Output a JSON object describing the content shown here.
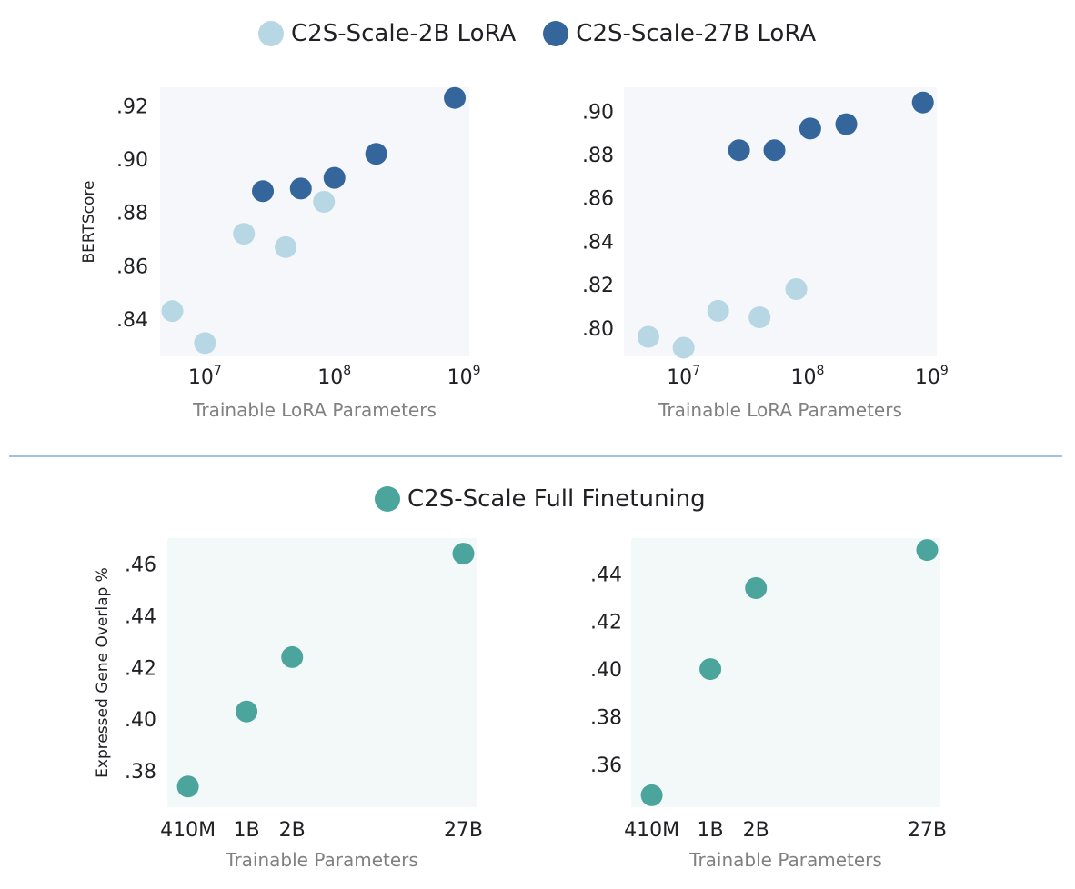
{
  "legends": {
    "top": [
      {
        "label": "C2S-Scale-2B LoRA",
        "color": "#b7d7e4"
      },
      {
        "label": "C2S-Scale-27B LoRA",
        "color": "#34669c"
      }
    ],
    "bottom": [
      {
        "label": "C2S-Scale Full Finetuning",
        "color": "#4ba59d"
      }
    ]
  },
  "divider_color": "#9fc2e5",
  "chart_data": [
    {
      "type": "scatter",
      "panel": "top-left",
      "title": "",
      "xlabel": "Trainable LoRA Parameters",
      "ylabel": "BERTScore",
      "xscale": "log",
      "xlim": [
        4500000.0,
        1100000000.0
      ],
      "ylim": [
        0.826,
        0.927
      ],
      "xticks": [
        {
          "value": 10000000.0,
          "label": "10",
          "exp": "7"
        },
        {
          "value": 100000000.0,
          "label": "10",
          "exp": "8"
        },
        {
          "value": 1000000000.0,
          "label": "10",
          "exp": "9"
        }
      ],
      "yticks": [
        {
          "value": 0.84,
          "label": ".84"
        },
        {
          "value": 0.86,
          "label": ".86"
        },
        {
          "value": 0.88,
          "label": ".88"
        },
        {
          "value": 0.9,
          "label": ".90"
        },
        {
          "value": 0.92,
          "label": ".92"
        }
      ],
      "background": "#f5f7fa",
      "grid": false,
      "series": [
        {
          "name": "C2S-Scale-2B LoRA",
          "color": "#b7d7e4",
          "points": [
            [
              5600000.0,
              0.843
            ],
            [
              10000000.0,
              0.831
            ],
            [
              20000000.0,
              0.872
            ],
            [
              42000000.0,
              0.867
            ],
            [
              83000000.0,
              0.884
            ]
          ]
        },
        {
          "name": "C2S-Scale-27B LoRA",
          "color": "#34669c",
          "points": [
            [
              28000000.0,
              0.888
            ],
            [
              55000000.0,
              0.889
            ],
            [
              100000000.0,
              0.893
            ],
            [
              210000000.0,
              0.902
            ],
            [
              850000000.0,
              0.923
            ]
          ]
        }
      ]
    },
    {
      "type": "scatter",
      "panel": "top-right",
      "title": "",
      "xlabel": "Trainable LoRA Parameters",
      "ylabel": "",
      "xscale": "log",
      "xlim": [
        3300000.0,
        1100000000.0
      ],
      "ylim": [
        0.787,
        0.911
      ],
      "xticks": [
        {
          "value": 10000000.0,
          "label": "10",
          "exp": "7"
        },
        {
          "value": 100000000.0,
          "label": "10",
          "exp": "8"
        },
        {
          "value": 1000000000.0,
          "label": "10",
          "exp": "9"
        }
      ],
      "yticks": [
        {
          "value": 0.8,
          "label": ".80"
        },
        {
          "value": 0.82,
          "label": ".82"
        },
        {
          "value": 0.84,
          "label": ".84"
        },
        {
          "value": 0.86,
          "label": ".86"
        },
        {
          "value": 0.88,
          "label": ".88"
        },
        {
          "value": 0.9,
          "label": ".90"
        }
      ],
      "background": "#f5f7fa",
      "grid": false,
      "series": [
        {
          "name": "C2S-Scale-2B LoRA",
          "color": "#b7d7e4",
          "points": [
            [
              5200000.0,
              0.796
            ],
            [
              10000000.0,
              0.791
            ],
            [
              19000000.0,
              0.808
            ],
            [
              41000000.0,
              0.805
            ],
            [
              81000000.0,
              0.818
            ]
          ]
        },
        {
          "name": "C2S-Scale-27B LoRA",
          "color": "#34669c",
          "points": [
            [
              28000000.0,
              0.882
            ],
            [
              54000000.0,
              0.882
            ],
            [
              105000000.0,
              0.892
            ],
            [
              205000000.0,
              0.894
            ],
            [
              850000000.0,
              0.904
            ]
          ]
        }
      ]
    },
    {
      "type": "scatter",
      "panel": "bottom-left",
      "title": "",
      "xlabel": "Trainable Parameters",
      "ylabel": "Expressed Gene Overlap %",
      "xscale": "log",
      "xlim": [
        300000000.0,
        33000000000.0
      ],
      "ylim": [
        0.366,
        0.47
      ],
      "xticks": [
        {
          "value": 410000000.0,
          "label": "410M"
        },
        {
          "value": 1000000000.0,
          "label": "1B"
        },
        {
          "value": 2000000000.0,
          "label": "2B"
        },
        {
          "value": 27000000000.0,
          "label": "27B"
        }
      ],
      "yticks": [
        {
          "value": 0.38,
          "label": ".38"
        },
        {
          "value": 0.4,
          "label": ".40"
        },
        {
          "value": 0.42,
          "label": ".42"
        },
        {
          "value": 0.44,
          "label": ".44"
        },
        {
          "value": 0.46,
          "label": ".46"
        }
      ],
      "background": "#f3f8f8",
      "grid": false,
      "series": [
        {
          "name": "C2S-Scale Full Finetuning",
          "color": "#4ba59d",
          "points": [
            [
              410000000.0,
              0.374
            ],
            [
              1000000000.0,
              0.403
            ],
            [
              2000000000.0,
              0.424
            ],
            [
              27000000000.0,
              0.464
            ]
          ]
        }
      ]
    },
    {
      "type": "scatter",
      "panel": "bottom-right",
      "title": "",
      "xlabel": "Trainable Parameters",
      "ylabel": "",
      "xscale": "log",
      "xlim": [
        300000000.0,
        33000000000.0
      ],
      "ylim": [
        0.342,
        0.455
      ],
      "xticks": [
        {
          "value": 410000000.0,
          "label": "410M"
        },
        {
          "value": 1000000000.0,
          "label": "1B"
        },
        {
          "value": 2000000000.0,
          "label": "2B"
        },
        {
          "value": 27000000000.0,
          "label": "27B"
        }
      ],
      "yticks": [
        {
          "value": 0.36,
          "label": ".36"
        },
        {
          "value": 0.38,
          "label": ".38"
        },
        {
          "value": 0.4,
          "label": ".40"
        },
        {
          "value": 0.42,
          "label": ".42"
        },
        {
          "value": 0.44,
          "label": ".44"
        }
      ],
      "background": "#f3f8f8",
      "grid": false,
      "series": [
        {
          "name": "C2S-Scale Full Finetuning",
          "color": "#4ba59d",
          "points": [
            [
              410000000.0,
              0.347
            ],
            [
              1000000000.0,
              0.4
            ],
            [
              2000000000.0,
              0.434
            ],
            [
              27000000000.0,
              0.45
            ]
          ]
        }
      ]
    }
  ]
}
